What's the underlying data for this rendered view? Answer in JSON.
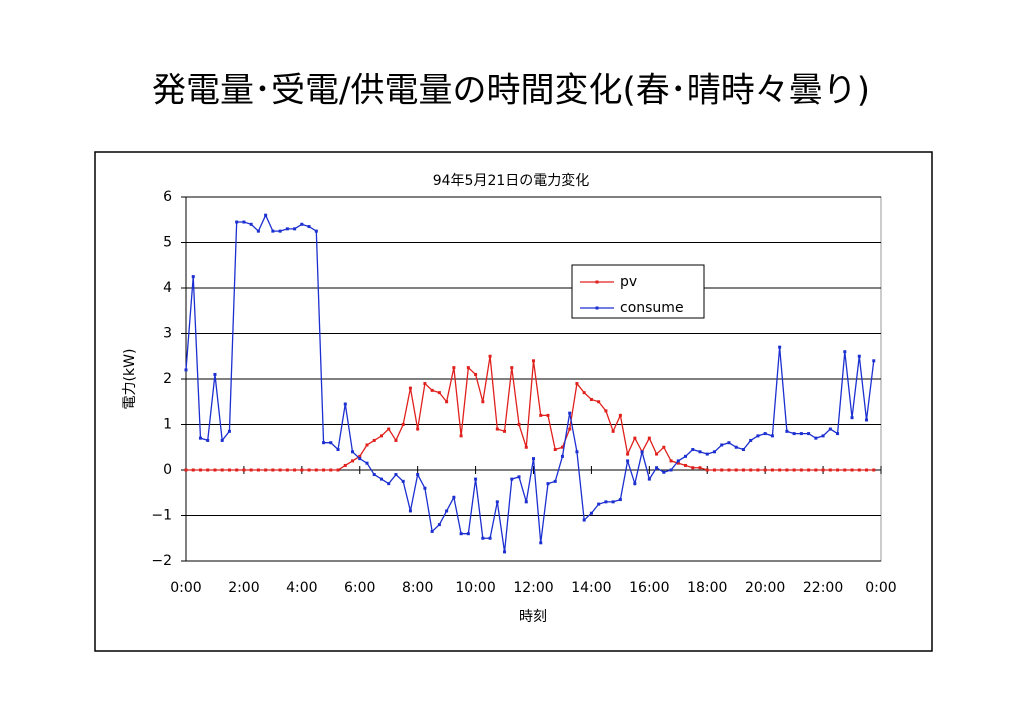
{
  "page_title": "発電量･受電/供電量の時間変化(春･晴時々曇り)",
  "chart_data": {
    "type": "line",
    "title": "94年5月21日の電力変化",
    "xlabel": "時刻",
    "ylabel": "電力(kW)",
    "x": [
      0,
      0.25,
      0.5,
      0.75,
      1,
      1.25,
      1.5,
      1.75,
      2,
      2.25,
      2.5,
      2.75,
      3,
      3.25,
      3.5,
      3.75,
      4,
      4.25,
      4.5,
      4.75,
      5,
      5.25,
      5.5,
      5.75,
      6,
      6.25,
      6.5,
      6.75,
      7,
      7.25,
      7.5,
      7.75,
      8,
      8.25,
      8.5,
      8.75,
      9,
      9.25,
      9.5,
      9.75,
      10,
      10.25,
      10.5,
      10.75,
      11,
      11.25,
      11.5,
      11.75,
      12,
      12.25,
      12.5,
      12.75,
      13,
      13.25,
      13.5,
      13.75,
      14,
      14.25,
      14.5,
      14.75,
      15,
      15.25,
      15.5,
      15.75,
      16,
      16.25,
      16.5,
      16.75,
      17,
      17.25,
      17.5,
      17.75,
      18,
      18.25,
      18.5,
      18.75,
      19,
      19.25,
      19.5,
      19.75,
      20,
      20.25,
      20.5,
      20.75,
      21,
      21.25,
      21.5,
      21.75,
      22,
      22.25,
      22.5,
      22.75,
      23,
      23.25,
      23.5,
      23.75
    ],
    "series": [
      {
        "name": "pv",
        "color": "#e0201c",
        "values": [
          0,
          0,
          0,
          0,
          0,
          0,
          0,
          0,
          0,
          0,
          0,
          0,
          0,
          0,
          0,
          0,
          0,
          0,
          0,
          0,
          0,
          0,
          0.1,
          0.2,
          0.3,
          0.55,
          0.65,
          0.75,
          0.9,
          0.65,
          1.0,
          1.8,
          0.9,
          1.9,
          1.75,
          1.7,
          1.5,
          2.25,
          0.75,
          2.25,
          2.1,
          1.5,
          2.5,
          0.9,
          0.85,
          2.25,
          1.0,
          0.5,
          2.4,
          1.2,
          1.2,
          0.45,
          0.5,
          0.9,
          1.9,
          1.7,
          1.55,
          1.5,
          1.3,
          0.85,
          1.2,
          0.35,
          0.7,
          0.4,
          0.7,
          0.35,
          0.5,
          0.2,
          0.15,
          0.1,
          0.05,
          0.05,
          0,
          0,
          0,
          0,
          0,
          0,
          0,
          0,
          0,
          0,
          0,
          0,
          0,
          0,
          0,
          0,
          0,
          0,
          0,
          0,
          0,
          0,
          0,
          0
        ]
      },
      {
        "name": "consume",
        "color": "#1c2fd0",
        "values": [
          2.2,
          4.25,
          0.7,
          0.65,
          2.1,
          0.65,
          0.85,
          5.45,
          5.45,
          5.4,
          5.25,
          5.6,
          5.25,
          5.25,
          5.3,
          5.3,
          5.4,
          5.35,
          5.25,
          0.6,
          0.6,
          0.45,
          1.45,
          0.4,
          0.25,
          0.15,
          -0.1,
          -0.2,
          -0.3,
          -0.1,
          -0.25,
          -0.9,
          -0.1,
          -0.4,
          -1.35,
          -1.2,
          -0.9,
          -0.6,
          -1.4,
          -1.4,
          -0.2,
          -1.5,
          -1.5,
          -0.7,
          -1.8,
          -0.2,
          -0.15,
          -0.7,
          0.25,
          -1.6,
          -0.3,
          -0.25,
          0.3,
          1.25,
          0.4,
          -1.1,
          -0.95,
          -0.75,
          -0.7,
          -0.7,
          -0.65,
          0.2,
          -0.3,
          0.4,
          -0.2,
          0.05,
          -0.05,
          0.0,
          0.2,
          0.3,
          0.45,
          0.4,
          0.35,
          0.4,
          0.55,
          0.6,
          0.5,
          0.45,
          0.65,
          0.75,
          0.8,
          0.75,
          2.7,
          0.85,
          0.8,
          0.8,
          0.8,
          0.7,
          0.75,
          0.9,
          0.8,
          2.6,
          1.15,
          2.5,
          1.1,
          2.4
        ]
      }
    ],
    "xlim": [
      0,
      24
    ],
    "xticks": [
      {
        "value": 0,
        "label": "0:00"
      },
      {
        "value": 2,
        "label": "2:00"
      },
      {
        "value": 4,
        "label": "4:00"
      },
      {
        "value": 6,
        "label": "6:00"
      },
      {
        "value": 8,
        "label": "8:00"
      },
      {
        "value": 10,
        "label": "10:00"
      },
      {
        "value": 12,
        "label": "12:00"
      },
      {
        "value": 14,
        "label": "14:00"
      },
      {
        "value": 16,
        "label": "16:00"
      },
      {
        "value": 18,
        "label": "18:00"
      },
      {
        "value": 20,
        "label": "20:00"
      },
      {
        "value": 22,
        "label": "22:00"
      },
      {
        "value": 24,
        "label": "0:00"
      }
    ],
    "ylim": [
      -2,
      6
    ],
    "yticks": [
      {
        "value": -2,
        "label": "−2"
      },
      {
        "value": -1,
        "label": "−1"
      },
      0,
      1,
      2,
      3,
      4,
      5,
      6
    ],
    "grid": true
  }
}
